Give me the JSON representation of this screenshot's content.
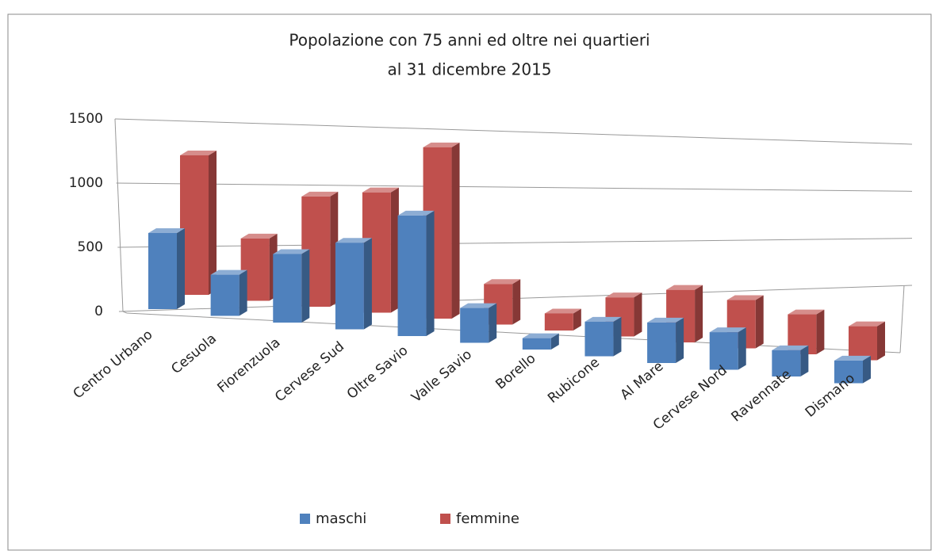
{
  "chart_data": {
    "type": "bar3d",
    "title": [
      "Popolazione con 75 anni ed oltre nei quartieri",
      "al 31 dicembre 2015"
    ],
    "categories": [
      "Centro Urbano",
      "Cesuola",
      "Fiorenzuola",
      "Cervese Sud",
      "Oltre Savio",
      "Valle Savio",
      "Borello",
      "Rubicone",
      "Al Mare",
      "Cervese Nord",
      "Ravennate",
      "Dismano"
    ],
    "series": [
      {
        "name": "maschi",
        "color": "#4f81bd",
        "values": [
          600,
          330,
          560,
          720,
          1020,
          300,
          100,
          310,
          370,
          350,
          250,
          220
        ]
      },
      {
        "name": "femmine",
        "color": "#c0504d",
        "values": [
          1100,
          500,
          900,
          1000,
          1450,
          350,
          150,
          350,
          480,
          450,
          380,
          330
        ]
      }
    ],
    "ylim": [
      0,
      1500
    ],
    "yticks": [
      0,
      500,
      1000,
      1500
    ],
    "grid": true,
    "legend": "bottom"
  }
}
